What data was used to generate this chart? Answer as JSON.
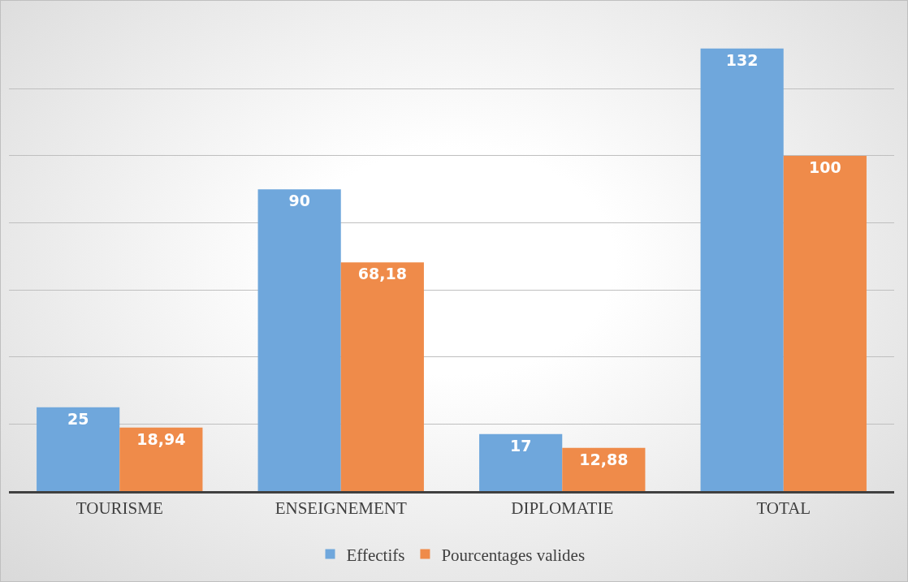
{
  "chart_data": {
    "type": "bar",
    "categories": [
      "TOURISME",
      "ENSEIGNEMENT",
      "DIPLOMATIE",
      "TOTAL"
    ],
    "series": [
      {
        "name": "Effectifs",
        "color": "#6fa7dc",
        "values": [
          25,
          90,
          17,
          132
        ],
        "value_labels": [
          "25",
          "90",
          "17",
          "132"
        ]
      },
      {
        "name": "Pourcentages valides",
        "color": "#ef8b4a",
        "values": [
          18.94,
          68.18,
          12.88,
          100
        ],
        "value_labels": [
          "18,94",
          "68,18",
          "12,88",
          "100"
        ]
      }
    ],
    "grid": "y",
    "legend": "bottom",
    "tick_labels": "x"
  }
}
